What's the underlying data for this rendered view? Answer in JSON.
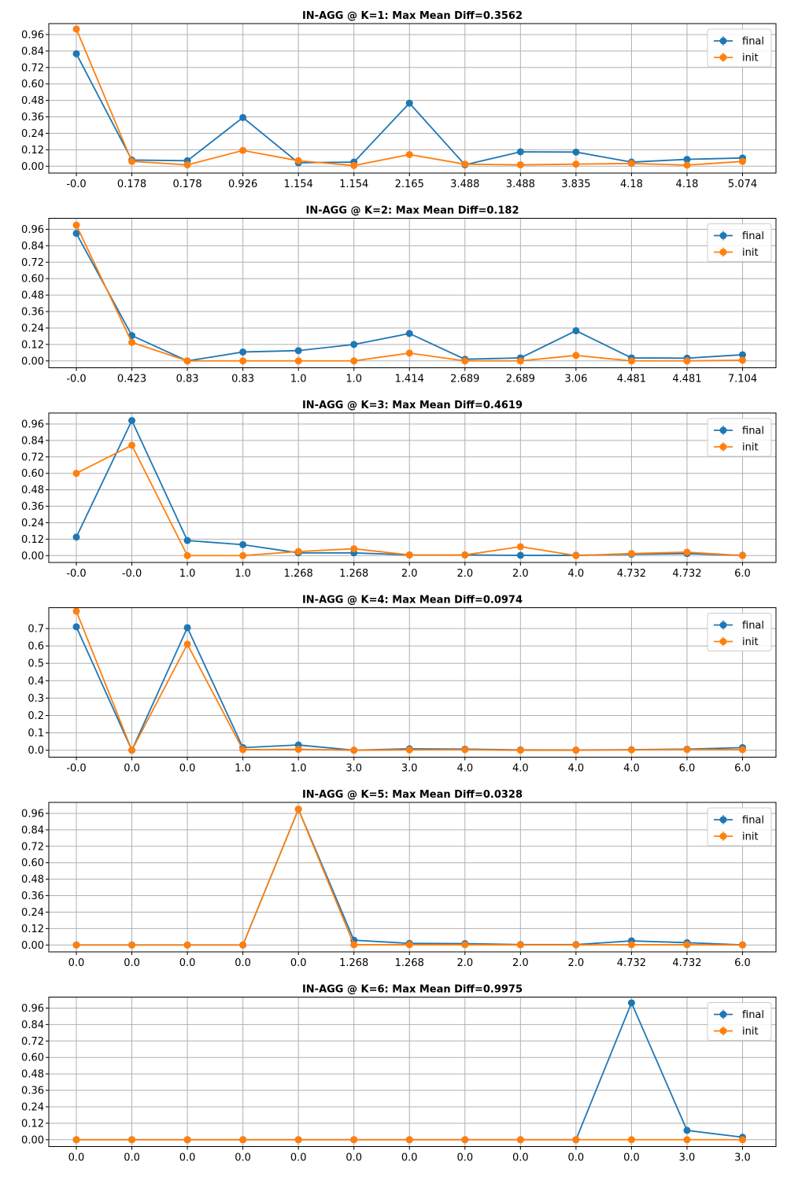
{
  "chart_data": [
    {
      "type": "line",
      "title": "IN-AGG @ K=1: Max Mean Diff=0.3562",
      "categories": [
        "-0.0",
        "0.178",
        "0.178",
        "0.926",
        "1.154",
        "1.154",
        "2.165",
        "3.488",
        "3.488",
        "3.835",
        "4.18",
        "4.18",
        "5.074"
      ],
      "yticks": [
        "0.00",
        "0.12",
        "0.24",
        "0.36",
        "0.48",
        "0.60",
        "0.72",
        "0.84",
        "0.96"
      ],
      "ylim": [
        -0.05,
        1.04
      ],
      "grid": true,
      "legend": "top-right",
      "series": [
        {
          "name": "final",
          "color": "#1f77b4",
          "values": [
            0.82,
            0.045,
            0.04,
            0.355,
            0.025,
            0.03,
            0.46,
            0.01,
            0.105,
            0.103,
            0.03,
            0.05,
            0.06
          ]
        },
        {
          "name": "init",
          "color": "#ff7f0e",
          "values": [
            1.0,
            0.035,
            0.01,
            0.115,
            0.04,
            0.005,
            0.085,
            0.015,
            0.01,
            0.015,
            0.02,
            0.008,
            0.035
          ]
        }
      ]
    },
    {
      "type": "line",
      "title": "IN-AGG @ K=2: Max Mean Diff=0.182",
      "categories": [
        "-0.0",
        "0.423",
        "0.83",
        "0.83",
        "1.0",
        "1.0",
        "1.414",
        "2.689",
        "2.689",
        "3.06",
        "4.481",
        "4.481",
        "7.104"
      ],
      "yticks": [
        "0.00",
        "0.12",
        "0.24",
        "0.36",
        "0.48",
        "0.60",
        "0.72",
        "0.84",
        "0.96"
      ],
      "ylim": [
        -0.05,
        1.04
      ],
      "grid": true,
      "legend": "top-right",
      "series": [
        {
          "name": "final",
          "color": "#1f77b4",
          "values": [
            0.93,
            0.185,
            0.0,
            0.065,
            0.075,
            0.12,
            0.2,
            0.012,
            0.022,
            0.22,
            0.022,
            0.02,
            0.045
          ]
        },
        {
          "name": "init",
          "color": "#ff7f0e",
          "values": [
            0.99,
            0.135,
            0.0,
            0.0,
            0.0,
            0.0,
            0.057,
            0.0,
            0.0,
            0.04,
            0.0,
            0.0,
            0.005
          ]
        }
      ]
    },
    {
      "type": "line",
      "title": "IN-AGG @ K=3: Max Mean Diff=0.4619",
      "categories": [
        "-0.0",
        "-0.0",
        "1.0",
        "1.0",
        "1.268",
        "1.268",
        "2.0",
        "2.0",
        "2.0",
        "4.0",
        "4.732",
        "4.732",
        "6.0"
      ],
      "yticks": [
        "0.00",
        "0.12",
        "0.24",
        "0.36",
        "0.48",
        "0.60",
        "0.72",
        "0.84",
        "0.96"
      ],
      "ylim": [
        -0.05,
        1.04
      ],
      "grid": true,
      "legend": "top-right",
      "series": [
        {
          "name": "final",
          "color": "#1f77b4",
          "values": [
            0.135,
            0.985,
            0.11,
            0.08,
            0.02,
            0.02,
            0.005,
            0.005,
            0.002,
            0.002,
            0.01,
            0.015,
            0.002
          ]
        },
        {
          "name": "init",
          "color": "#ff7f0e",
          "values": [
            0.6,
            0.805,
            0.0,
            0.0,
            0.03,
            0.05,
            0.005,
            0.005,
            0.065,
            0.0,
            0.015,
            0.025,
            0.0
          ]
        }
      ]
    },
    {
      "type": "line",
      "title": "IN-AGG @ K=4: Max Mean Diff=0.0974",
      "categories": [
        "-0.0",
        "0.0",
        "0.0",
        "1.0",
        "1.0",
        "3.0",
        "3.0",
        "4.0",
        "4.0",
        "4.0",
        "4.0",
        "6.0",
        "6.0"
      ],
      "yticks": [
        "0.0",
        "0.1",
        "0.2",
        "0.3",
        "0.4",
        "0.5",
        "0.6",
        "0.7"
      ],
      "ylim": [
        -0.04,
        0.82
      ],
      "grid": true,
      "legend": "top-right",
      "series": [
        {
          "name": "final",
          "color": "#1f77b4",
          "values": [
            0.71,
            0.0,
            0.705,
            0.015,
            0.03,
            0.0,
            0.008,
            0.006,
            0.002,
            0.001,
            0.003,
            0.006,
            0.015
          ]
        },
        {
          "name": "init",
          "color": "#ff7f0e",
          "values": [
            0.8,
            0.0,
            0.61,
            0.003,
            0.005,
            0.0,
            0.002,
            0.003,
            0.0,
            0.0,
            0.002,
            0.004,
            0.003
          ]
        }
      ]
    },
    {
      "type": "line",
      "title": "IN-AGG @ K=5: Max Mean Diff=0.0328",
      "categories": [
        "0.0",
        "0.0",
        "0.0",
        "0.0",
        "0.0",
        "1.268",
        "1.268",
        "2.0",
        "2.0",
        "2.0",
        "4.732",
        "4.732",
        "6.0"
      ],
      "yticks": [
        "0.00",
        "0.12",
        "0.24",
        "0.36",
        "0.48",
        "0.60",
        "0.72",
        "0.84",
        "0.96"
      ],
      "ylim": [
        -0.05,
        1.04
      ],
      "grid": true,
      "legend": "top-right",
      "series": [
        {
          "name": "final",
          "color": "#1f77b4",
          "values": [
            0.0,
            0.0,
            0.0,
            0.0,
            0.99,
            0.035,
            0.012,
            0.01,
            0.003,
            0.003,
            0.03,
            0.017,
            0.001
          ]
        },
        {
          "name": "init",
          "color": "#ff7f0e",
          "values": [
            0.0,
            0.0,
            0.0,
            0.0,
            0.99,
            0.002,
            0.002,
            0.002,
            0.001,
            0.001,
            0.002,
            0.002,
            0.0
          ]
        }
      ]
    },
    {
      "type": "line",
      "title": "IN-AGG @ K=6: Max Mean Diff=0.9975",
      "categories": [
        "0.0",
        "0.0",
        "0.0",
        "0.0",
        "0.0",
        "0.0",
        "0.0",
        "0.0",
        "0.0",
        "0.0",
        "0.0",
        "3.0",
        "3.0"
      ],
      "yticks": [
        "0.00",
        "0.12",
        "0.24",
        "0.36",
        "0.48",
        "0.60",
        "0.72",
        "0.84",
        "0.96"
      ],
      "ylim": [
        -0.05,
        1.04
      ],
      "grid": true,
      "legend": "top-right",
      "series": [
        {
          "name": "final",
          "color": "#1f77b4",
          "values": [
            0.0,
            0.0,
            0.0,
            0.0,
            0.0,
            0.0,
            0.0,
            0.0,
            0.0,
            0.0,
            0.998,
            0.068,
            0.018
          ]
        },
        {
          "name": "init",
          "color": "#ff7f0e",
          "values": [
            0.0,
            0.0,
            0.0,
            0.0,
            0.0,
            0.0,
            0.0,
            0.0,
            0.0,
            0.0,
            0.0,
            0.0,
            0.0
          ]
        }
      ]
    }
  ]
}
